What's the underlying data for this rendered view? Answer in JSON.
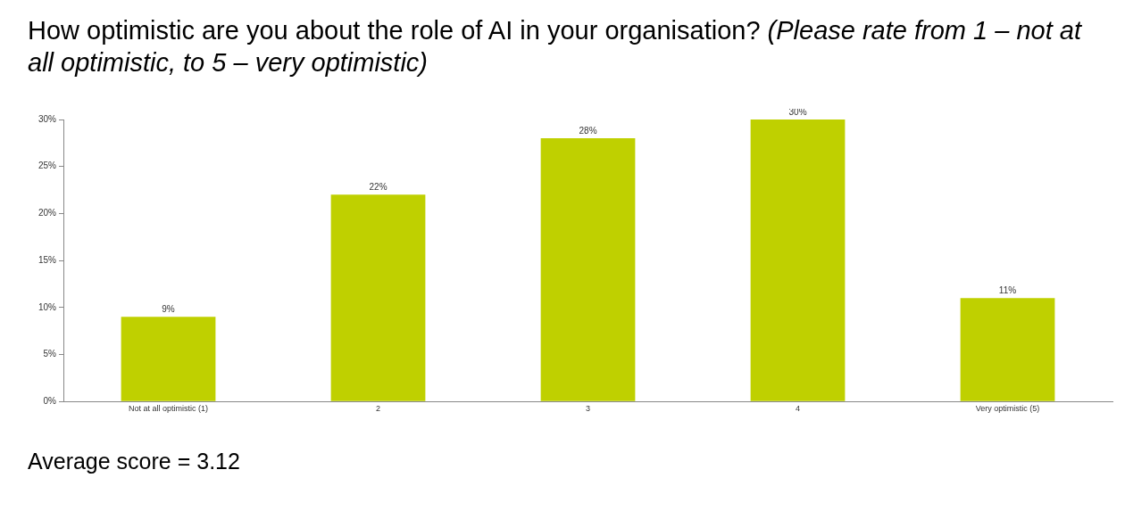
{
  "chart_data": {
    "type": "bar",
    "title": "How optimistic are you about the role of AI in your organisation?",
    "subtitle": "(Please rate from 1 – not at all optimistic, to 5 – very optimistic)",
    "categories": [
      "Not at all optimistic (1)",
      "2",
      "3",
      "4",
      "Very optimistic (5)"
    ],
    "values": [
      9,
      22,
      28,
      30,
      11
    ],
    "value_labels": [
      "9%",
      "22%",
      "28%",
      "30%",
      "11%"
    ],
    "color": "#bfd000",
    "ylim": [
      0,
      30
    ],
    "yticks": [
      {
        "value": 0,
        "label": "0%"
      },
      {
        "value": 5,
        "label": "5%"
      },
      {
        "value": 10,
        "label": "10%"
      },
      {
        "value": 15,
        "label": "15%"
      },
      {
        "value": 20,
        "label": "20%"
      },
      {
        "value": 25,
        "label": "25%"
      },
      {
        "value": 30,
        "label": "30%"
      }
    ],
    "grid": false,
    "legend": false,
    "annotations": [
      "Average score = 3.12"
    ]
  }
}
